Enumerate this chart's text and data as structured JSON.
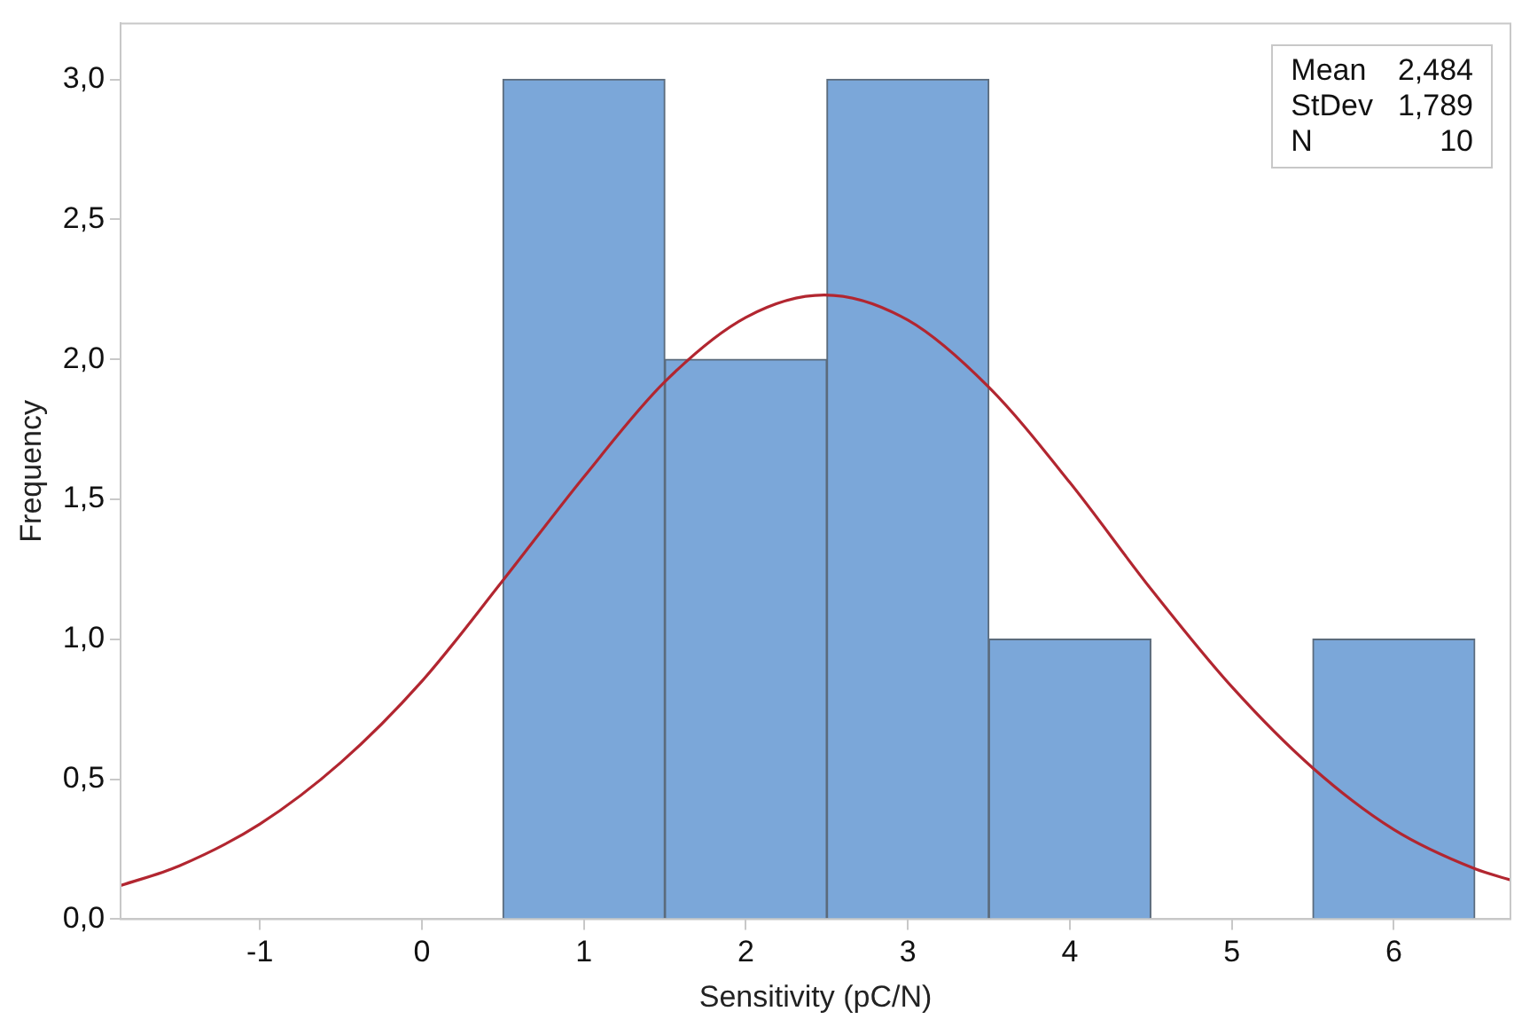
{
  "chart_data": {
    "type": "histogram",
    "xlabel": "Sensitivity (pC/N)",
    "ylabel": "Frequency",
    "bins": [
      0.5,
      1.5,
      2.5,
      3.5,
      4.5,
      5.5,
      6.5
    ],
    "values": [
      3,
      2,
      3,
      1,
      0,
      1
    ],
    "color": "#7ba7d9",
    "series": [
      {
        "type": "line",
        "color": "#b22630",
        "x": [
          -1.86,
          -1.5,
          -1,
          -0.5,
          0,
          0.5,
          1,
          1.5,
          2,
          2.484,
          3,
          3.5,
          4,
          4.5,
          5,
          5.5,
          6,
          6.5,
          6.72
        ],
        "values": [
          0.12,
          0.19,
          0.34,
          0.56,
          0.85,
          1.21,
          1.58,
          1.92,
          2.15,
          2.23,
          2.14,
          1.9,
          1.56,
          1.18,
          0.83,
          0.54,
          0.32,
          0.18,
          0.14
        ]
      }
    ],
    "xlim": [
      -1.86,
      6.72
    ],
    "xticks": [
      -1,
      0,
      1,
      2,
      3,
      4,
      5,
      6
    ],
    "ylim": [
      0,
      3.2
    ],
    "yticks": [
      {
        "value": 0,
        "label": "0,0"
      },
      {
        "value": 0.5,
        "label": "0,5"
      },
      {
        "value": 1,
        "label": "1,0"
      },
      {
        "value": 1.5,
        "label": "1,5"
      },
      {
        "value": 2,
        "label": "2,0"
      },
      {
        "value": 2.5,
        "label": "2,5"
      },
      {
        "value": 3,
        "label": "3,0"
      }
    ],
    "annotations": [
      "Mean",
      "2,484",
      "StDev",
      "1,789",
      "N",
      "10"
    ],
    "grid": false,
    "legend": false
  }
}
